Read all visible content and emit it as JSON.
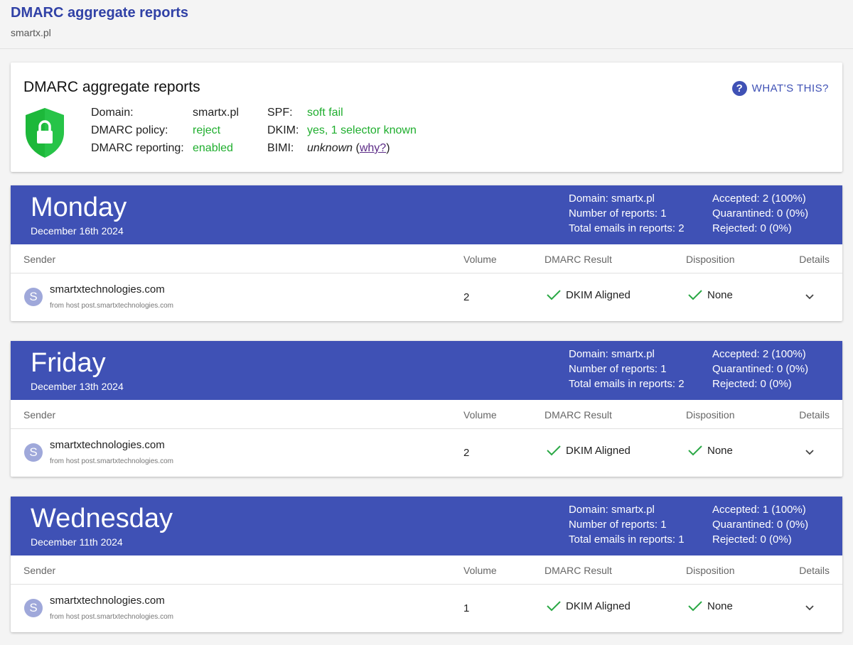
{
  "header": {
    "title": "DMARC aggregate reports",
    "subtitle": "smartx.pl"
  },
  "summary": {
    "title": "DMARC aggregate reports",
    "help_icon": "?",
    "help": "WHAT'S THIS?",
    "left_fields": [
      {
        "label": "Domain:",
        "value": "smartx.pl"
      },
      {
        "label": "DMARC policy:",
        "value": "reject"
      },
      {
        "label": "DMARC reporting:",
        "value": "enabled"
      }
    ],
    "right_fields": [
      {
        "label": "SPF:",
        "value": "soft fail"
      },
      {
        "label": "DKIM:",
        "value": "yes, 1 selector known"
      },
      {
        "label": "BIMI:",
        "value": "unknown",
        "open": "(",
        "link": "why?",
        "close": ")"
      }
    ]
  },
  "columns": [
    "Sender",
    "Volume",
    "DMARC Result",
    "Disposition",
    "Details"
  ],
  "days": [
    {
      "day": "Monday",
      "date": "December 16th 2024",
      "stats": [
        "Domain: smartx.pl",
        "Number of reports: 1",
        "Total emails in reports: 2",
        "Accepted: 2 (100%)",
        "Quarantined: 0 (0%)",
        "Rejected: 0 (0%)"
      ],
      "rows": [
        {
          "initial": "S",
          "sender": "smartxtechnologies.com",
          "host": "from host post.smartxtechnologies.com",
          "volume": 2,
          "result": "DKIM Aligned",
          "disposition": "None"
        }
      ]
    },
    {
      "day": "Friday",
      "date": "December 13th 2024",
      "stats": [
        "Domain: smartx.pl",
        "Number of reports: 1",
        "Total emails in reports: 2",
        "Accepted: 2 (100%)",
        "Quarantined: 0 (0%)",
        "Rejected: 0 (0%)"
      ],
      "rows": [
        {
          "initial": "S",
          "sender": "smartxtechnologies.com",
          "host": "from host post.smartxtechnologies.com",
          "volume": 2,
          "result": "DKIM Aligned",
          "disposition": "None"
        }
      ]
    },
    {
      "day": "Wednesday",
      "date": "December 11th 2024",
      "stats": [
        "Domain: smartx.pl",
        "Number of reports: 1",
        "Total emails in reports: 1",
        "Accepted: 1 (100%)",
        "Quarantined: 0 (0%)",
        "Rejected: 0 (0%)"
      ],
      "rows": [
        {
          "initial": "S",
          "sender": "smartxtechnologies.com",
          "host": "from host post.smartxtechnologies.com",
          "volume": 1,
          "result": "DKIM Aligned",
          "disposition": "None"
        }
      ]
    }
  ]
}
